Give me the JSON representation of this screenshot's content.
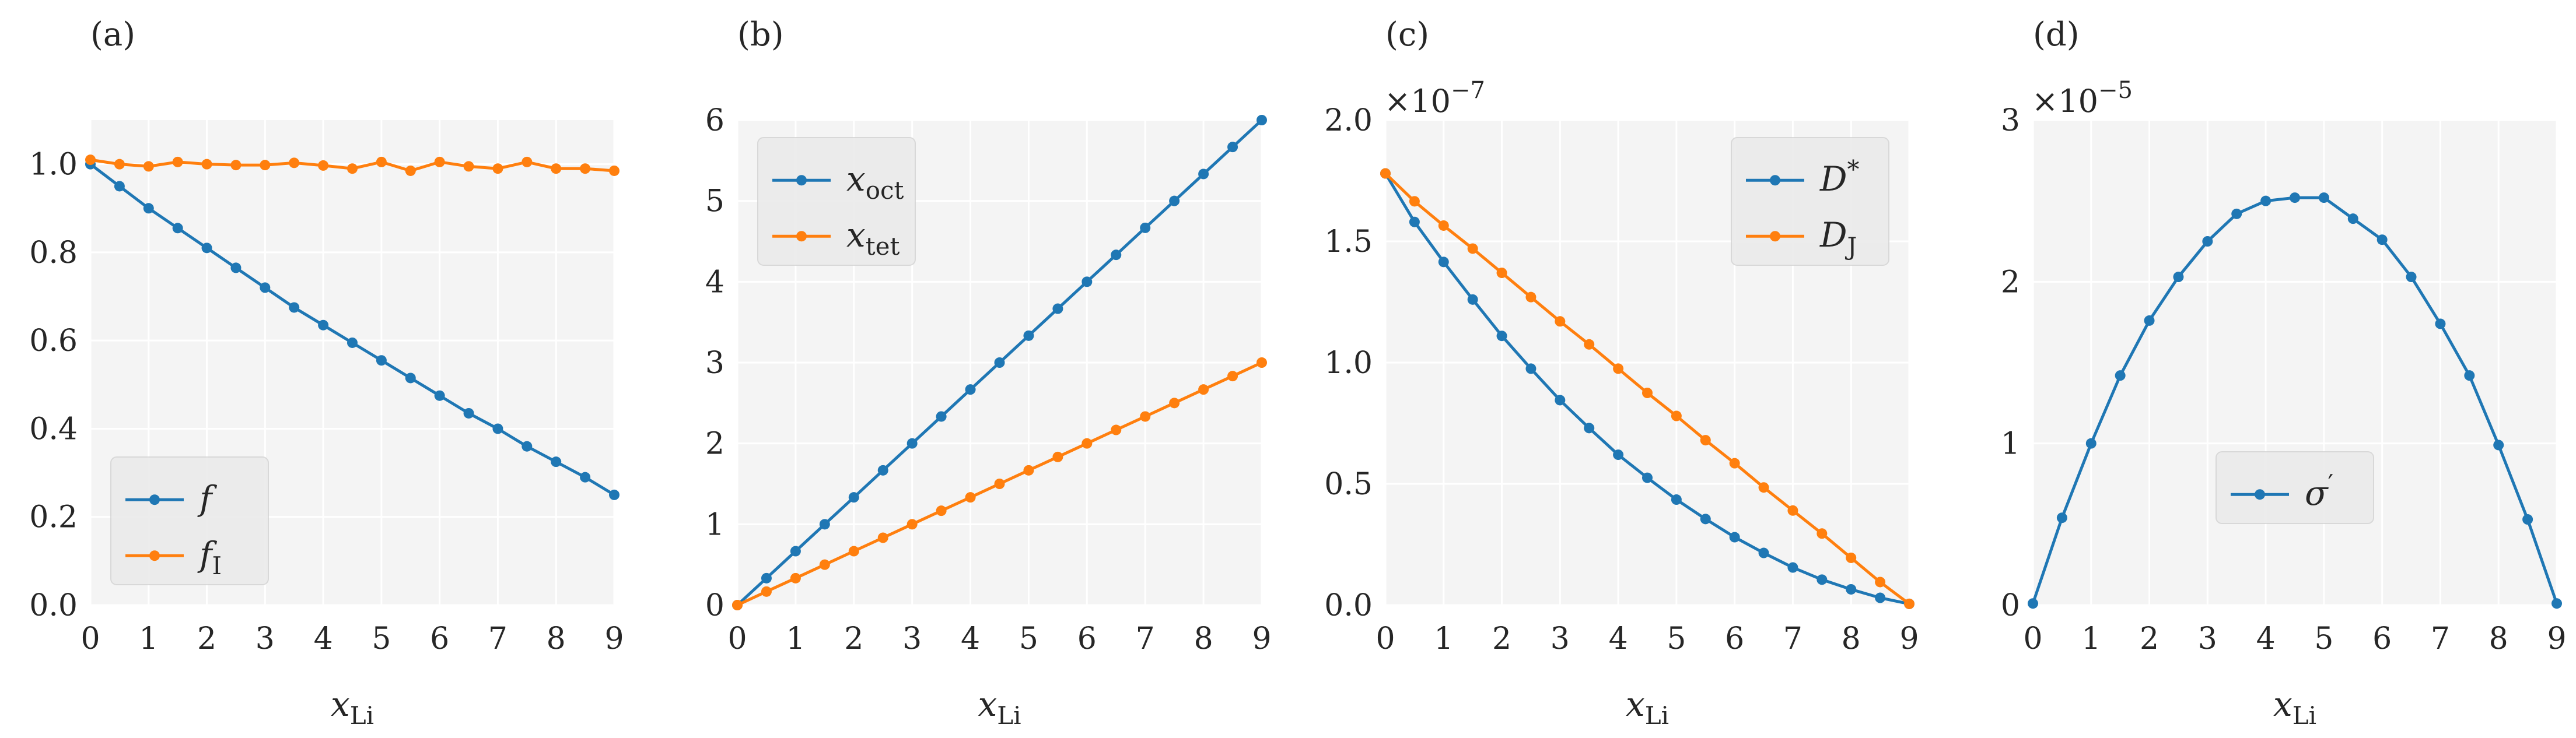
{
  "colors": {
    "blue": "#1f77b4",
    "orange": "#ff7f0e",
    "panel_bg": "#f4f4f4",
    "grid": "#ffffff"
  },
  "chart_data": [
    {
      "type": "line",
      "panel_label": "(a)",
      "xlabel": "x_Li",
      "ylabel": "",
      "x": [
        0,
        0.5,
        1,
        1.5,
        2,
        2.5,
        3,
        3.5,
        4,
        4.5,
        5,
        5.5,
        6,
        6.5,
        7,
        7.5,
        8,
        8.5,
        9
      ],
      "xlim": [
        0,
        9
      ],
      "ylim": [
        0,
        1.1
      ],
      "x_ticks": [
        0,
        1,
        2,
        3,
        4,
        5,
        6,
        7,
        8,
        9
      ],
      "y_ticks": [
        0.0,
        0.2,
        0.4,
        0.6,
        0.8,
        1.0
      ],
      "y_tick_labels": [
        "0.0",
        "0.2",
        "0.4",
        "0.6",
        "0.8",
        "1.0"
      ],
      "exponent": "",
      "legend_position": "lower-left",
      "series": [
        {
          "name": "f",
          "name_sub": "",
          "name_sup": "",
          "color": "#1f77b4",
          "values": [
            1.0,
            0.95,
            0.9,
            0.855,
            0.81,
            0.765,
            0.72,
            0.675,
            0.635,
            0.595,
            0.555,
            0.515,
            0.475,
            0.435,
            0.4,
            0.36,
            0.325,
            0.29,
            0.25
          ]
        },
        {
          "name": "f",
          "name_sub": "I",
          "name_sup": "",
          "color": "#ff7f0e",
          "values": [
            1.01,
            1.0,
            0.995,
            1.005,
            1.0,
            0.998,
            0.998,
            1.003,
            0.997,
            0.99,
            1.005,
            0.985,
            1.005,
            0.995,
            0.99,
            1.005,
            0.99,
            0.99,
            0.985
          ]
        }
      ]
    },
    {
      "type": "line",
      "panel_label": "(b)",
      "xlabel": "x_Li",
      "ylabel": "",
      "x": [
        0,
        0.5,
        1,
        1.5,
        2,
        2.5,
        3,
        3.5,
        4,
        4.5,
        5,
        5.5,
        6,
        6.5,
        7,
        7.5,
        8,
        8.5,
        9
      ],
      "xlim": [
        0,
        9
      ],
      "ylim": [
        0,
        6
      ],
      "x_ticks": [
        0,
        1,
        2,
        3,
        4,
        5,
        6,
        7,
        8,
        9
      ],
      "y_ticks": [
        0,
        1,
        2,
        3,
        4,
        5,
        6
      ],
      "y_tick_labels": [
        "0",
        "1",
        "2",
        "3",
        "4",
        "5",
        "6"
      ],
      "exponent": "",
      "legend_position": "upper-left",
      "series": [
        {
          "name": "x",
          "name_sub": "oct",
          "name_sup": "",
          "color": "#1f77b4",
          "values": [
            0,
            0.333,
            0.667,
            1.0,
            1.333,
            1.667,
            2.0,
            2.333,
            2.667,
            3.0,
            3.333,
            3.667,
            4.0,
            4.333,
            4.667,
            5.0,
            5.333,
            5.667,
            6.0
          ]
        },
        {
          "name": "x",
          "name_sub": "tet",
          "name_sup": "",
          "color": "#ff7f0e",
          "values": [
            0,
            0.167,
            0.333,
            0.5,
            0.667,
            0.833,
            1.0,
            1.167,
            1.333,
            1.5,
            1.667,
            1.833,
            2.0,
            2.167,
            2.333,
            2.5,
            2.667,
            2.833,
            3.0
          ]
        }
      ]
    },
    {
      "type": "line",
      "panel_label": "(c)",
      "xlabel": "x_Li",
      "ylabel": "",
      "x": [
        0,
        0.5,
        1,
        1.5,
        2,
        2.5,
        3,
        3.5,
        4,
        4.5,
        5,
        5.5,
        6,
        6.5,
        7,
        7.5,
        8,
        8.5,
        9
      ],
      "xlim": [
        0,
        9
      ],
      "ylim": [
        0,
        2.0
      ],
      "x_ticks": [
        0,
        1,
        2,
        3,
        4,
        5,
        6,
        7,
        8,
        9
      ],
      "y_ticks": [
        0.0,
        0.5,
        1.0,
        1.5,
        2.0
      ],
      "y_tick_labels": [
        "0.0",
        "0.5",
        "1.0",
        "1.5",
        "2.0"
      ],
      "exponent": "×10−7",
      "legend_position": "upper-right",
      "series": [
        {
          "name": "D",
          "name_sub": "",
          "name_sup": "*",
          "color": "#1f77b4",
          "values": [
            1.78,
            1.58,
            1.415,
            1.26,
            1.11,
            0.975,
            0.845,
            0.73,
            0.62,
            0.525,
            0.435,
            0.355,
            0.28,
            0.215,
            0.155,
            0.105,
            0.065,
            0.03,
            0.005
          ]
        },
        {
          "name": "D",
          "name_sub": "J",
          "name_sup": "",
          "color": "#ff7f0e",
          "values": [
            1.78,
            1.665,
            1.565,
            1.47,
            1.37,
            1.27,
            1.17,
            1.075,
            0.975,
            0.875,
            0.78,
            0.68,
            0.585,
            0.485,
            0.39,
            0.295,
            0.195,
            0.095,
            0.005
          ]
        }
      ]
    },
    {
      "type": "line",
      "panel_label": "(d)",
      "xlabel": "x_Li",
      "ylabel": "",
      "x": [
        0,
        0.5,
        1,
        1.5,
        2,
        2.5,
        3,
        3.5,
        4,
        4.5,
        5,
        5.5,
        6,
        6.5,
        7,
        7.5,
        8,
        8.5,
        9
      ],
      "xlim": [
        0,
        9
      ],
      "ylim": [
        0,
        3
      ],
      "x_ticks": [
        0,
        1,
        2,
        3,
        4,
        5,
        6,
        7,
        8,
        9
      ],
      "y_ticks": [
        0,
        1,
        2,
        3
      ],
      "y_tick_labels": [
        "0",
        "1",
        "2",
        "3"
      ],
      "exponent": "×10−5",
      "legend_position": "lower-center",
      "series": [
        {
          "name": "σ",
          "name_sub": "",
          "name_sup": "′",
          "color": "#1f77b4",
          "values": [
            0.01,
            0.54,
            1.0,
            1.42,
            1.76,
            2.03,
            2.25,
            2.42,
            2.5,
            2.52,
            2.52,
            2.39,
            2.26,
            2.03,
            1.74,
            1.42,
            0.99,
            0.53,
            0.01
          ]
        }
      ]
    }
  ]
}
